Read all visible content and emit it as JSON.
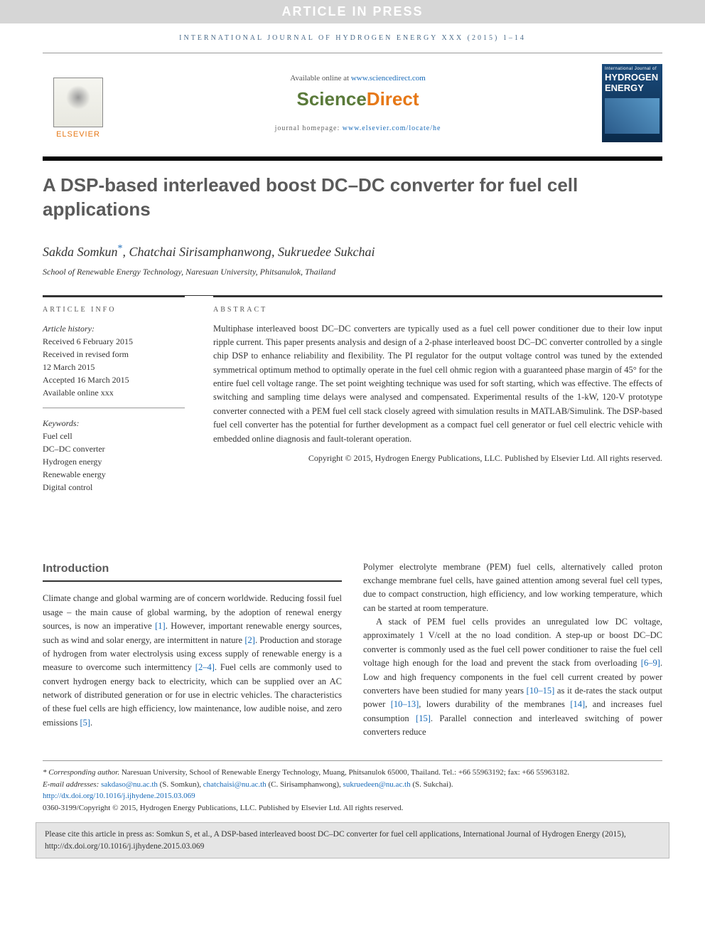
{
  "banner": "ARTICLE IN PRESS",
  "journal_line": "INTERNATIONAL JOURNAL OF HYDROGEN ENERGY XXX (2015) 1–14",
  "header": {
    "elsevier": "ELSEVIER",
    "available": "Available online at ",
    "available_url": "www.sciencedirect.com",
    "sd_logo_a": "Science",
    "sd_logo_b": "Direct",
    "homepage_label": "journal homepage: ",
    "homepage_url": "www.elsevier.com/locate/he",
    "cover_small": "International Journal of",
    "cover_big1": "HYDROGEN",
    "cover_big2": "ENERGY"
  },
  "title": "A DSP-based interleaved boost DC–DC converter for fuel cell applications",
  "authors": {
    "a1": "Sakda Somkun",
    "corr": "*",
    "a2": ", Chatchai Sirisamphanwong, Sukruedee Sukchai"
  },
  "affiliation": "School of Renewable Energy Technology, Naresuan University, Phitsanulok, Thailand",
  "info": {
    "label": "ARTICLE INFO",
    "history_hdr": "Article history:",
    "h1": "Received 6 February 2015",
    "h2": "Received in revised form",
    "h3": "12 March 2015",
    "h4": "Accepted 16 March 2015",
    "h5": "Available online xxx",
    "kw_hdr": "Keywords:",
    "k1": "Fuel cell",
    "k2": "DC–DC converter",
    "k3": "Hydrogen energy",
    "k4": "Renewable energy",
    "k5": "Digital control"
  },
  "abstract": {
    "label": "ABSTRACT",
    "text": "Multiphase interleaved boost DC–DC converters are typically used as a fuel cell power conditioner due to their low input ripple current. This paper presents analysis and design of a 2-phase interleaved boost DC–DC converter controlled by a single chip DSP to enhance reliability and flexibility. The PI regulator for the output voltage control was tuned by the extended symmetrical optimum method to optimally operate in the fuel cell ohmic region with a guaranteed phase margin of 45° for the entire fuel cell voltage range. The set point weighting technique was used for soft starting, which was effective. The effects of switching and sampling time delays were analysed and compensated. Experimental results of the 1-kW, 120-V prototype converter connected with a PEM fuel cell stack closely agreed with simulation results in MATLAB/Simulink. The DSP-based fuel cell converter has the potential for further development as a compact fuel cell generator or fuel cell electric vehicle with embedded online diagnosis and fault-tolerant operation.",
    "copyright": "Copyright © 2015, Hydrogen Energy Publications, LLC. Published by Elsevier Ltd. All rights reserved."
  },
  "intro": {
    "heading": "Introduction",
    "col1_pre": "Climate change and global warming are of concern worldwide. Reducing fossil fuel usage – the main cause of global warming, by the adoption of renewal energy sources, is now an imperative ",
    "r1": "[1]",
    "col1_mid1": ". However, important renewable energy sources, such as wind and solar energy, are intermittent in nature ",
    "r2": "[2]",
    "col1_mid2": ". Production and storage of hydrogen from water electrolysis using excess supply of renewable energy is a measure to overcome such intermittency ",
    "r3": "[2–4]",
    "col1_mid3": ". Fuel cells are commonly used to convert hydrogen energy back to electricity, which can be supplied over an AC network of distributed generation or for use in electric vehicles. The characteristics of these fuel cells are high efficiency, low maintenance, low audible noise, and zero emissions ",
    "r4": "[5]",
    "col1_end": ".",
    "col2_p1": "Polymer electrolyte membrane (PEM) fuel cells, alternatively called proton exchange membrane fuel cells, have gained attention among several fuel cell types, due to compact construction, high efficiency, and low working temperature, which can be started at room temperature.",
    "col2_p2_a": "A stack of PEM fuel cells provides an unregulated low DC voltage, approximately 1 V/cell at the no load condition. A step-up or boost DC–DC converter is commonly used as the fuel cell power conditioner to raise the fuel cell voltage high enough for the load and prevent the stack from overloading ",
    "r5": "[6–9]",
    "col2_p2_b": ". Low and high frequency components in the fuel cell current created by power converters have been studied for many years ",
    "r6": "[10–15]",
    "col2_p2_c": " as it de-rates the stack output power ",
    "r7": "[10–13]",
    "col2_p2_d": ", lowers durability of the membranes ",
    "r8": "[14]",
    "col2_p2_e": ", and increases fuel consumption ",
    "r9": "[15]",
    "col2_p2_f": ". Parallel connection and interleaved switching of power converters reduce"
  },
  "footnotes": {
    "corr_label": "* Corresponding author.",
    "corr_text": " Naresuan University, School of Renewable Energy Technology, Muang, Phitsanulok 65000, Thailand. Tel.: +66 55963192; fax: +66 55963182.",
    "email_label": "E-mail addresses: ",
    "e1": "sakdaso@nu.ac.th",
    "e1_who": " (S. Somkun), ",
    "e2": "chatchaisi@nu.ac.th",
    "e2_who": " (C. Sirisamphanwong), ",
    "e3": "sukruedeen@nu.ac.th",
    "e3_who": " (S. Sukchai).",
    "doi": "http://dx.doi.org/10.1016/j.ijhydene.2015.03.069",
    "issn": "0360-3199/Copyright © 2015, Hydrogen Energy Publications, LLC. Published by Elsevier Ltd. All rights reserved."
  },
  "citebox": "Please cite this article in press as: Somkun S, et al., A DSP-based interleaved boost DC–DC converter for fuel cell applications, International Journal of Hydrogen Energy (2015), http://dx.doi.org/10.1016/j.ijhydene.2015.03.069"
}
